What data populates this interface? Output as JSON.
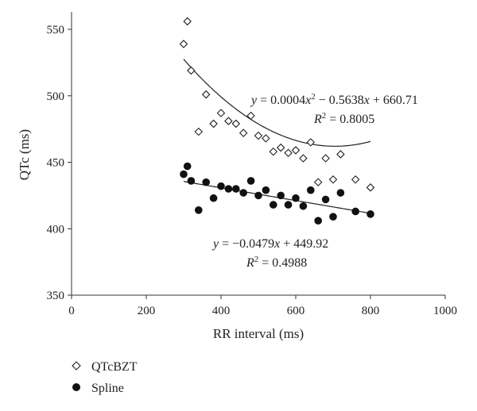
{
  "chart_data": {
    "type": "scatter",
    "xlabel": "RR interval (ms)",
    "ylabel": "QTc (ms)",
    "xlim": [
      0,
      1000
    ],
    "ylim": [
      350,
      560
    ],
    "xticks": [
      0,
      200,
      400,
      600,
      800,
      1000
    ],
    "yticks": [
      350,
      400,
      450,
      500,
      550
    ],
    "grid": false,
    "legend_position": "bottom-left",
    "series": [
      {
        "name": "QTcBZT",
        "marker": "open-diamond",
        "color": "#222222",
        "points": [
          [
            300,
            539
          ],
          [
            310,
            556
          ],
          [
            320,
            519
          ],
          [
            340,
            473
          ],
          [
            360,
            501
          ],
          [
            380,
            479
          ],
          [
            400,
            487
          ],
          [
            420,
            481
          ],
          [
            440,
            479
          ],
          [
            460,
            472
          ],
          [
            480,
            485
          ],
          [
            500,
            470
          ],
          [
            520,
            468
          ],
          [
            540,
            458
          ],
          [
            560,
            461
          ],
          [
            580,
            457
          ],
          [
            600,
            459
          ],
          [
            620,
            453
          ],
          [
            640,
            465
          ],
          [
            660,
            435
          ],
          [
            680,
            453
          ],
          [
            700,
            437
          ],
          [
            720,
            456
          ],
          [
            760,
            437
          ],
          [
            800,
            431
          ]
        ],
        "fit": {
          "type": "quadratic",
          "coefficients": [
            0.0004,
            -0.5638,
            660.71
          ],
          "x_range": [
            300,
            800
          ],
          "equation_parts": [
            "y",
            " = 0.0004",
            "x",
            "2",
            " − 0.5638",
            "x",
            " + 660.71"
          ],
          "r2_parts": [
            "R",
            "2",
            " = 0.8005"
          ]
        }
      },
      {
        "name": "Spline",
        "marker": "filled-circle",
        "color": "#111111",
        "points": [
          [
            300,
            441
          ],
          [
            310,
            447
          ],
          [
            320,
            436
          ],
          [
            340,
            414
          ],
          [
            360,
            435
          ],
          [
            380,
            423
          ],
          [
            400,
            432
          ],
          [
            420,
            430
          ],
          [
            440,
            430
          ],
          [
            460,
            427
          ],
          [
            480,
            436
          ],
          [
            500,
            425
          ],
          [
            520,
            429
          ],
          [
            540,
            418
          ],
          [
            560,
            425
          ],
          [
            580,
            418
          ],
          [
            600,
            423
          ],
          [
            620,
            417
          ],
          [
            640,
            429
          ],
          [
            660,
            406
          ],
          [
            680,
            422
          ],
          [
            700,
            409
          ],
          [
            720,
            427
          ],
          [
            760,
            413
          ],
          [
            800,
            411
          ]
        ],
        "fit": {
          "type": "linear",
          "coefficients": [
            -0.0479,
            449.92
          ],
          "x_range": [
            300,
            800
          ],
          "equation_parts": [
            "y",
            " = −0.0479",
            "x",
            " + 449.92"
          ],
          "r2_parts": [
            "R",
            "2",
            " = 0.4988"
          ]
        }
      }
    ]
  }
}
